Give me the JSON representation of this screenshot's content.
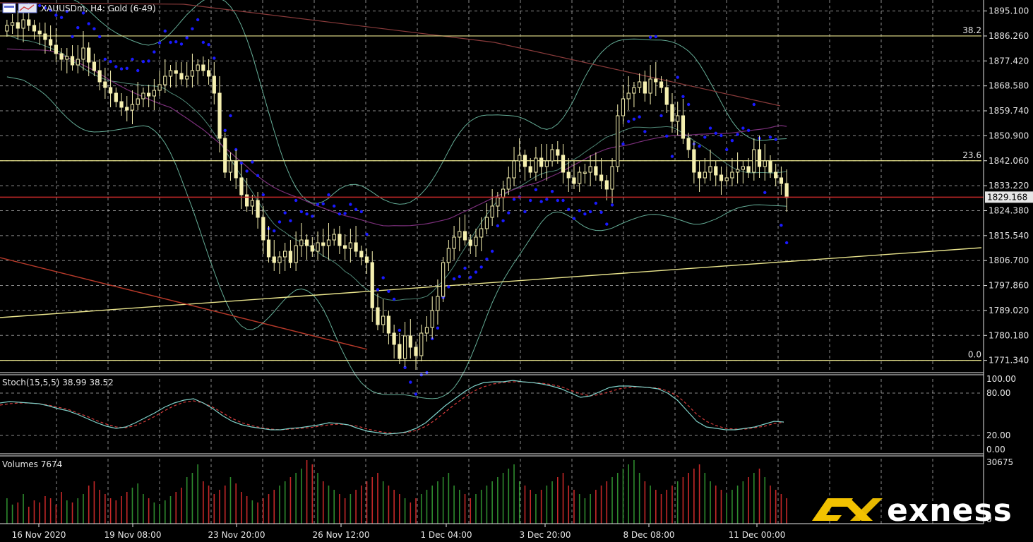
{
  "window": {
    "title": "XAUUSDm, H4: Gold (6-49)",
    "icons": [
      "window-icon",
      "chart-icon"
    ]
  },
  "price_axis": {
    "ticks": [
      "1895.100",
      "1886.260",
      "1877.420",
      "1868.580",
      "1859.740",
      "1850.900",
      "1842.060",
      "1833.220",
      "1824.380",
      "1815.540",
      "1806.700",
      "1797.860",
      "1789.020",
      "1780.180",
      "1771.340"
    ],
    "current_price": "1829.168",
    "current_color": "#c62828"
  },
  "fibo": {
    "levels": [
      {
        "label": "38.2",
        "price": 1886.26
      },
      {
        "label": "23.6",
        "price": 1842.06
      },
      {
        "label": "0.0",
        "price": 1771.34
      }
    ],
    "color": "#e9e48c"
  },
  "stoch": {
    "label": "Stoch(15,5,5) 38.99 38.52",
    "ticks": [
      "100.00",
      "80.00",
      "20.00",
      "0.00"
    ],
    "main_color": "#7fd1c9",
    "signal_color": "#d23b3b"
  },
  "volumes": {
    "label": "Volumes 7674",
    "max_tick": "30675",
    "min_tick": "0",
    "up_color": "#2e8b2e",
    "down_color": "#c62828"
  },
  "time_axis": {
    "labels": [
      "16 Nov 2020",
      "19 Nov 08:00",
      "23 Nov 20:00",
      "26 Nov 12:00",
      "1 Dec 04:00",
      "3 Dec 20:00",
      "8 Dec 08:00",
      "11 Dec 00:00"
    ]
  },
  "brand": {
    "name": "exness",
    "color": "#f2c200"
  },
  "colors": {
    "candle": "#f5f0b0",
    "grid": "#ffffff",
    "psar": "#1a1aff",
    "bollinger": "#6fbfa6",
    "ma_slow": "#8a3b3b",
    "ma_purple": "#7b2f7b",
    "trendline_yellow": "#e9e48c",
    "trendline_red": "#b83a2a"
  },
  "chart_data": {
    "type": "candlestick",
    "title": "XAUUSDm, H4: Gold (6-49)",
    "x_labels": [
      "16 Nov 2020",
      "19 Nov 08:00",
      "23 Nov 20:00",
      "26 Nov 12:00",
      "1 Dec 04:00",
      "3 Dec 20:00",
      "8 Dec 08:00",
      "11 Dec 00:00"
    ],
    "ylim": [
      1767,
      1899
    ],
    "current_price": 1829.168,
    "closes": [
      1890,
      1891,
      1889,
      1892,
      1890,
      1888,
      1887,
      1885,
      1883,
      1880,
      1878,
      1879,
      1876,
      1878,
      1882,
      1877,
      1874,
      1870,
      1868,
      1866,
      1863,
      1861,
      1860,
      1862,
      1864,
      1866,
      1865,
      1867,
      1869,
      1872,
      1874,
      1873,
      1871,
      1872,
      1874,
      1876,
      1874,
      1872,
      1866,
      1850,
      1838,
      1842,
      1836,
      1830,
      1826,
      1828,
      1822,
      1814,
      1808,
      1806,
      1808,
      1810,
      1806,
      1812,
      1814,
      1812,
      1810,
      1813,
      1812,
      1814,
      1816,
      1812,
      1811,
      1813,
      1810,
      1808,
      1806,
      1790,
      1784,
      1787,
      1781,
      1777,
      1772,
      1780,
      1776,
      1773,
      1781,
      1783,
      1789,
      1794,
      1806,
      1811,
      1815,
      1817,
      1814,
      1812,
      1815,
      1818,
      1822,
      1826,
      1829,
      1832,
      1836,
      1842,
      1844,
      1840,
      1838,
      1843,
      1840,
      1842,
      1846,
      1844,
      1838,
      1836,
      1834,
      1838,
      1838,
      1840,
      1837,
      1835,
      1832,
      1840,
      1858,
      1864,
      1866,
      1868,
      1870,
      1866,
      1871,
      1870,
      1868,
      1862,
      1856,
      1858,
      1850,
      1846,
      1838,
      1836,
      1838,
      1840,
      1837,
      1835,
      1836,
      1838,
      1839,
      1840,
      1838,
      1846,
      1840,
      1842,
      1838,
      1836,
      1834,
      1829
    ],
    "stoch_main": [
      66,
      68,
      67,
      66,
      65,
      62,
      58,
      55,
      50,
      44,
      38,
      33,
      30,
      32,
      38,
      45,
      52,
      60,
      66,
      70,
      72,
      66,
      58,
      48,
      40,
      35,
      32,
      30,
      28,
      28,
      30,
      31,
      33,
      35,
      38,
      37,
      35,
      30,
      26,
      24,
      22,
      23,
      25,
      30,
      38,
      50,
      62,
      72,
      82,
      90,
      95,
      96,
      96,
      98,
      96,
      95,
      93,
      90,
      86,
      80,
      74,
      76,
      82,
      88,
      90,
      90,
      89,
      88,
      86,
      80,
      70,
      55,
      40,
      32,
      30,
      28,
      28,
      30,
      32,
      36,
      40,
      38.99
    ],
    "stoch_signal": [
      63,
      65,
      66,
      66,
      65,
      63,
      60,
      57,
      52,
      47,
      41,
      36,
      32,
      31,
      34,
      40,
      47,
      55,
      62,
      67,
      69,
      66,
      60,
      52,
      44,
      38,
      34,
      31,
      29,
      28,
      29,
      30,
      31,
      33,
      35,
      36,
      35,
      33,
      29,
      26,
      24,
      23,
      24,
      27,
      33,
      42,
      53,
      64,
      74,
      83,
      89,
      93,
      95,
      96,
      96,
      95,
      94,
      92,
      89,
      84,
      79,
      76,
      78,
      82,
      86,
      88,
      89,
      88,
      87,
      83,
      76,
      64,
      50,
      40,
      34,
      30,
      29,
      29,
      31,
      33,
      37,
      38.52
    ],
    "volumes": [
      12,
      9,
      10,
      14,
      8,
      11,
      10,
      13,
      12,
      9,
      15,
      11,
      10,
      12,
      14,
      18,
      20,
      16,
      14,
      12,
      11,
      13,
      15,
      17,
      19,
      14,
      12,
      10,
      9,
      11,
      13,
      15,
      17,
      22,
      24,
      28,
      20,
      18,
      14,
      16,
      18,
      22,
      19,
      15,
      13,
      11,
      10,
      12,
      14,
      16,
      18,
      20,
      22,
      24,
      26,
      30,
      28,
      24,
      20,
      18,
      16,
      14,
      12,
      14,
      16,
      18,
      20,
      22,
      24,
      20,
      18,
      16,
      14,
      12,
      10,
      12,
      14,
      16,
      18,
      20,
      22,
      24,
      18,
      16,
      14,
      12,
      14,
      16,
      18,
      20,
      22,
      24,
      26,
      28,
      20,
      18,
      16,
      14,
      16,
      18,
      20,
      22,
      24,
      18,
      16,
      14,
      12,
      14,
      16,
      18,
      20,
      22,
      24,
      26,
      28,
      30,
      24,
      20,
      18,
      16,
      14,
      16,
      18,
      20,
      22,
      24,
      26,
      28,
      24,
      20,
      18,
      16,
      14,
      16,
      18,
      20,
      22,
      24,
      26,
      22,
      18,
      16,
      14,
      12
    ]
  }
}
